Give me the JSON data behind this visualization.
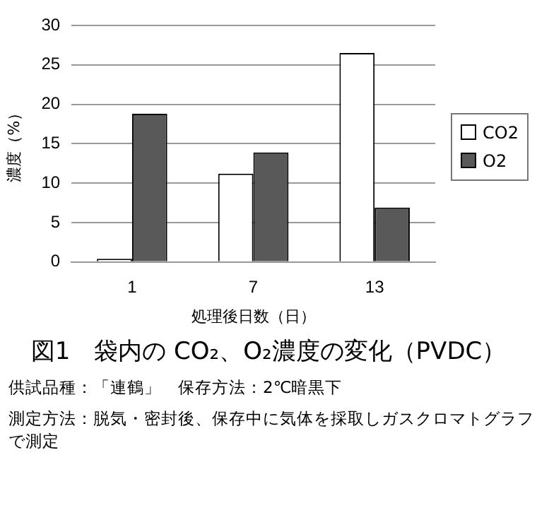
{
  "chart_data": {
    "type": "bar",
    "title": "図1　袋内の CO₂、O₂濃度の変化（PVDC）",
    "xlabel": "処理後日数（日）",
    "ylabel": "濃度（%）",
    "categories": [
      "1",
      "7",
      "13"
    ],
    "series": [
      {
        "name": "CO2",
        "color": "#ffffff",
        "values": [
          0.4,
          11.2,
          26.5
        ]
      },
      {
        "name": "O2",
        "color": "#595959",
        "values": [
          18.8,
          13.9,
          6.9
        ]
      }
    ],
    "ylim": [
      0,
      30
    ],
    "yticks": [
      0,
      5,
      10,
      15,
      20,
      25,
      30
    ],
    "grid": "y",
    "legend": "right",
    "annotations": [
      "供試品種：「連鶴」　保存方法：2℃暗黒下",
      "測定方法：脱気・密封後、保存中に気体を採取しガスクロマトグラフで測定"
    ]
  }
}
